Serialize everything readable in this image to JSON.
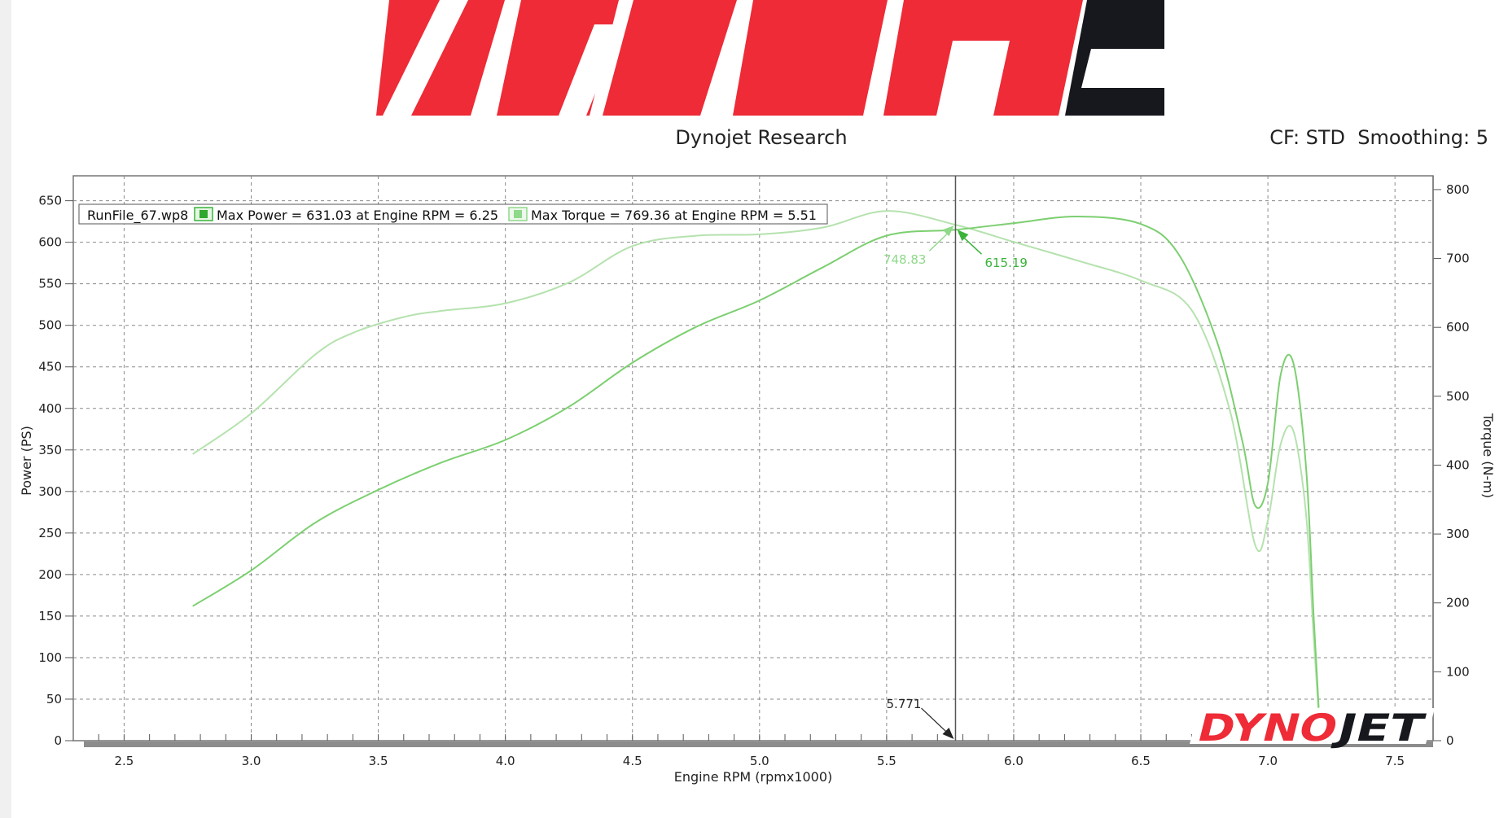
{
  "header": {
    "title": "Dynojet Research",
    "settings": "CF: STD  Smoothing: 5"
  },
  "logos": {
    "top_logo_text": "DYNO",
    "bottom_logo_text": "DYNOJET"
  },
  "colors": {
    "logo_red": "#ee2b36",
    "logo_black": "#16181d",
    "power_curve": "#7ccf70",
    "torque_curve": "#b5e2ae",
    "marker_power": "#3ab33a",
    "marker_torque": "#8fd98a"
  },
  "legend": {
    "file": "RunFile_67.wp8",
    "power": "Max Power = 631.03 at Engine RPM = 6.25",
    "torque": "Max Torque = 769.36 at Engine RPM = 5.51"
  },
  "chart_data": {
    "type": "line",
    "title": "Dynojet Research",
    "xlabel": "Engine RPM (rpmx1000)",
    "ylabel": "Power (PS)",
    "y2label": "Torque (N-m)",
    "xlim": [
      2.3,
      7.65
    ],
    "ylim": [
      0,
      680
    ],
    "y2lim": [
      0,
      820
    ],
    "x_ticks": [
      "2.5",
      "3.0",
      "3.5",
      "4.0",
      "4.5",
      "5.0",
      "5.5",
      "6.0",
      "6.5",
      "7.0",
      "7.5"
    ],
    "y_ticks": [
      "0",
      "50",
      "100",
      "150",
      "200",
      "250",
      "300",
      "350",
      "400",
      "450",
      "500",
      "550",
      "600",
      "650"
    ],
    "y2_ticks": [
      "0",
      "100",
      "200",
      "300",
      "400",
      "500",
      "600",
      "700",
      "800"
    ],
    "grid": true,
    "legend_position": "top-left",
    "series": [
      {
        "name": "Power",
        "axis": "left",
        "x": [
          2.77,
          3.0,
          3.25,
          3.5,
          3.75,
          4.0,
          4.25,
          4.5,
          4.75,
          5.0,
          5.25,
          5.5,
          5.77,
          6.0,
          6.25,
          6.5,
          6.65,
          6.8,
          6.9,
          6.95,
          7.0,
          7.05,
          7.1,
          7.15,
          7.18,
          7.2
        ],
        "y": [
          162,
          205,
          262,
          302,
          335,
          362,
          402,
          455,
          498,
          530,
          570,
          608,
          615,
          623,
          631,
          622,
          585,
          480,
          360,
          283,
          310,
          440,
          455,
          330,
          150,
          40
        ]
      },
      {
        "name": "Torque",
        "axis": "right",
        "x": [
          2.77,
          3.0,
          3.25,
          3.4,
          3.6,
          3.75,
          4.0,
          4.25,
          4.5,
          4.75,
          5.0,
          5.25,
          5.5,
          5.77,
          6.0,
          6.25,
          6.5,
          6.7,
          6.85,
          6.95,
          7.0,
          7.05,
          7.1,
          7.15,
          7.18,
          7.2
        ],
        "y": [
          416,
          475,
          560,
          592,
          615,
          624,
          635,
          665,
          718,
          733,
          735,
          745,
          769,
          749,
          724,
          697,
          668,
          625,
          480,
          284,
          320,
          430,
          450,
          330,
          150,
          40
        ]
      }
    ],
    "cursor": {
      "x": 5.771,
      "label": "5.771",
      "torque_value": "748.83",
      "power_value": "615.19"
    }
  }
}
